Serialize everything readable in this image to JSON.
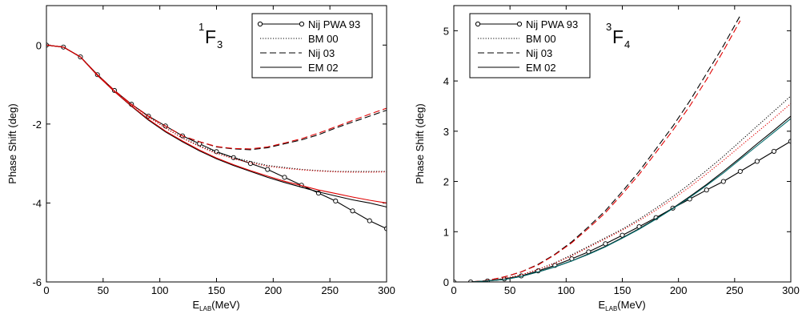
{
  "chart_data": [
    {
      "type": "line",
      "title_sup": "1",
      "title": "F",
      "title_sub": "3",
      "xlabel": "E",
      "xlabel_sub": "LAB",
      "xlabel_unit": "(MeV)",
      "ylabel": "Phase Shift (deg)",
      "legend": "upper right",
      "xlim": [
        0,
        300
      ],
      "xticks": [
        0,
        50,
        100,
        150,
        200,
        250,
        300
      ],
      "ylim": [
        -6,
        1
      ],
      "yticks": [
        -6,
        -4,
        -2,
        0
      ],
      "x": [
        0,
        15,
        30,
        45,
        60,
        75,
        90,
        105,
        120,
        135,
        150,
        165,
        180,
        195,
        210,
        225,
        240,
        255,
        270,
        285,
        300
      ],
      "series": [
        {
          "name": "Nij PWA 93",
          "color": "#000000",
          "style": "solid",
          "marker": "circle",
          "values": [
            0,
            -0.05,
            -0.3,
            -0.75,
            -1.15,
            -1.5,
            -1.8,
            -2.05,
            -2.3,
            -2.5,
            -2.7,
            -2.85,
            -3.0,
            -3.15,
            -3.35,
            -3.55,
            -3.75,
            -3.95,
            -4.2,
            -4.45,
            -4.65
          ]
        },
        {
          "name": "BM 00",
          "color": "#000000",
          "style": "dotted",
          "values": [
            0,
            -0.05,
            -0.3,
            -0.75,
            -1.15,
            -1.5,
            -1.82,
            -2.1,
            -2.35,
            -2.55,
            -2.72,
            -2.85,
            -2.95,
            -3.05,
            -3.1,
            -3.15,
            -3.18,
            -3.2,
            -3.2,
            -3.2,
            -3.2
          ]
        },
        {
          "color": "#e00000",
          "style": "dotted",
          "values": [
            0,
            -0.05,
            -0.3,
            -0.75,
            -1.15,
            -1.5,
            -1.82,
            -2.1,
            -2.36,
            -2.57,
            -2.75,
            -2.88,
            -2.98,
            -3.07,
            -3.12,
            -3.16,
            -3.19,
            -3.21,
            -3.22,
            -3.22,
            -3.21
          ]
        },
        {
          "name": "Nij 03",
          "color": "#000000",
          "style": "dashed",
          "values": [
            0,
            -0.05,
            -0.3,
            -0.75,
            -1.15,
            -1.5,
            -1.8,
            -2.05,
            -2.3,
            -2.45,
            -2.58,
            -2.63,
            -2.65,
            -2.6,
            -2.5,
            -2.4,
            -2.27,
            -2.1,
            -1.95,
            -1.8,
            -1.65
          ]
        },
        {
          "color": "#e00000",
          "style": "dashed",
          "values": [
            0,
            -0.05,
            -0.3,
            -0.75,
            -1.15,
            -1.5,
            -1.8,
            -2.05,
            -2.3,
            -2.45,
            -2.57,
            -2.62,
            -2.63,
            -2.58,
            -2.48,
            -2.37,
            -2.23,
            -2.07,
            -1.91,
            -1.75,
            -1.6
          ]
        },
        {
          "name": "EM 02",
          "color": "#000000",
          "style": "solid",
          "values": [
            0,
            -0.05,
            -0.3,
            -0.77,
            -1.18,
            -1.55,
            -1.9,
            -2.2,
            -2.45,
            -2.68,
            -2.88,
            -3.05,
            -3.2,
            -3.35,
            -3.48,
            -3.6,
            -3.72,
            -3.82,
            -3.92,
            -4.0,
            -4.1
          ]
        },
        {
          "color": "#e00000",
          "style": "solid",
          "values": [
            0,
            -0.05,
            -0.3,
            -0.77,
            -1.18,
            -1.54,
            -1.88,
            -2.18,
            -2.43,
            -2.66,
            -2.86,
            -3.03,
            -3.18,
            -3.32,
            -3.45,
            -3.56,
            -3.67,
            -3.76,
            -3.85,
            -3.93,
            -4.0
          ]
        }
      ]
    },
    {
      "type": "line",
      "title_sup": "3",
      "title": "F",
      "title_sub": "4",
      "xlabel": "E",
      "xlabel_sub": "LAB",
      "xlabel_unit": "(MeV)",
      "ylabel": "Phase Shift (deg)",
      "legend": "upper left",
      "xlim": [
        0,
        300
      ],
      "xticks": [
        0,
        50,
        100,
        150,
        200,
        250,
        300
      ],
      "ylim": [
        0,
        5.5
      ],
      "yticks": [
        0,
        1,
        2,
        3,
        4,
        5
      ],
      "x": [
        0,
        15,
        30,
        45,
        60,
        75,
        90,
        105,
        120,
        135,
        150,
        165,
        180,
        195,
        210,
        225,
        240,
        255,
        270,
        285,
        300
      ],
      "series": [
        {
          "name": "Nij PWA 93",
          "color": "#000000",
          "style": "solid",
          "marker": "circle",
          "values": [
            0,
            0,
            0.02,
            0.06,
            0.12,
            0.22,
            0.33,
            0.46,
            0.6,
            0.76,
            0.93,
            1.1,
            1.28,
            1.47,
            1.65,
            1.83,
            2.0,
            2.2,
            2.4,
            2.6,
            2.8
          ]
        },
        {
          "name": "BM 00",
          "color": "#000000",
          "style": "dotted",
          "values": [
            0,
            0,
            0.02,
            0.07,
            0.14,
            0.25,
            0.38,
            0.54,
            0.71,
            0.88,
            1.05,
            1.25,
            1.47,
            1.7,
            1.95,
            2.22,
            2.5,
            2.8,
            3.1,
            3.4,
            3.7
          ]
        },
        {
          "color": "#e00000",
          "style": "dotted",
          "values": [
            0,
            0,
            0.02,
            0.07,
            0.14,
            0.25,
            0.37,
            0.52,
            0.69,
            0.86,
            1.03,
            1.22,
            1.43,
            1.65,
            1.89,
            2.15,
            2.42,
            2.7,
            2.98,
            3.26,
            3.55
          ]
        },
        {
          "name": "Nij 03",
          "color": "#000000",
          "style": "dashed",
          "values": [
            0,
            0,
            0.03,
            0.1,
            0.2,
            0.35,
            0.55,
            0.8,
            1.1,
            1.42,
            1.8,
            2.2,
            2.65,
            3.1,
            3.6,
            4.15,
            4.7,
            5.3,
            null,
            null,
            null
          ]
        },
        {
          "color": "#e00000",
          "style": "dashed",
          "values": [
            0,
            0,
            0.03,
            0.1,
            0.2,
            0.34,
            0.54,
            0.78,
            1.07,
            1.38,
            1.75,
            2.14,
            2.58,
            3.02,
            3.5,
            4.03,
            4.6,
            5.2,
            null,
            null,
            null
          ]
        },
        {
          "name": "EM 02",
          "color": "#000000",
          "style": "solid",
          "values": [
            0,
            0,
            0.02,
            0.05,
            0.11,
            0.2,
            0.3,
            0.42,
            0.56,
            0.71,
            0.88,
            1.06,
            1.26,
            1.47,
            1.7,
            1.94,
            2.2,
            2.47,
            2.75,
            3.02,
            3.3
          ]
        },
        {
          "color": "#006a6a",
          "style": "solid",
          "values": [
            0,
            0,
            0.02,
            0.05,
            0.11,
            0.2,
            0.3,
            0.42,
            0.55,
            0.7,
            0.87,
            1.05,
            1.25,
            1.46,
            1.68,
            1.92,
            2.17,
            2.44,
            2.71,
            2.98,
            3.25
          ]
        }
      ]
    }
  ]
}
